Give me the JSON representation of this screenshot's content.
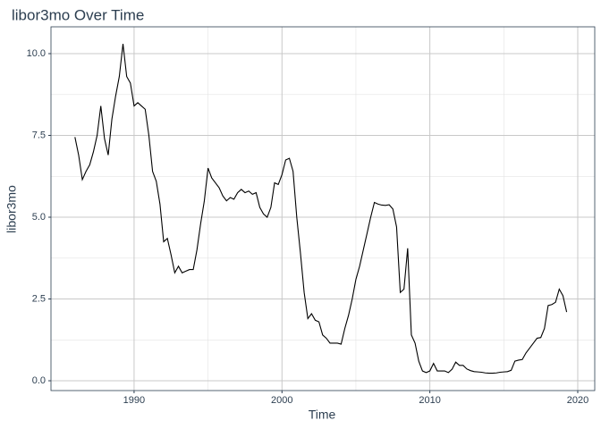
{
  "chart_data": {
    "type": "line",
    "title": "libor3mo Over Time",
    "x_label": "Time",
    "y_label": "libor3mo",
    "x": [
      1986,
      1986.25,
      1986.5,
      1986.75,
      1987,
      1987.25,
      1987.5,
      1987.75,
      1988,
      1988.25,
      1988.5,
      1988.75,
      1989,
      1989.25,
      1989.5,
      1989.75,
      1990,
      1990.25,
      1990.5,
      1990.75,
      1991,
      1991.25,
      1991.5,
      1991.75,
      1992,
      1992.25,
      1992.5,
      1992.75,
      1993,
      1993.25,
      1993.5,
      1993.75,
      1994,
      1994.25,
      1994.5,
      1994.75,
      1995,
      1995.25,
      1995.5,
      1995.75,
      1996,
      1996.25,
      1996.5,
      1996.75,
      1997,
      1997.25,
      1997.5,
      1997.75,
      1998,
      1998.25,
      1998.5,
      1998.75,
      1999,
      1999.25,
      1999.5,
      1999.75,
      2000,
      2000.25,
      2000.5,
      2000.75,
      2001,
      2001.25,
      2001.5,
      2001.75,
      2002,
      2002.25,
      2002.5,
      2002.75,
      2003,
      2003.25,
      2003.5,
      2003.75,
      2004,
      2004.25,
      2004.5,
      2004.75,
      2005,
      2005.25,
      2005.5,
      2005.75,
      2006,
      2006.25,
      2006.5,
      2006.75,
      2007,
      2007.25,
      2007.5,
      2007.75,
      2008,
      2008.25,
      2008.5,
      2008.75,
      2009,
      2009.25,
      2009.5,
      2009.75,
      2010,
      2010.25,
      2010.5,
      2010.75,
      2011,
      2011.25,
      2011.5,
      2011.75,
      2012,
      2012.25,
      2012.5,
      2012.75,
      2013,
      2013.25,
      2013.5,
      2013.75,
      2014,
      2014.25,
      2014.5,
      2014.75,
      2015,
      2015.25,
      2015.5,
      2015.75,
      2016,
      2016.25,
      2016.5,
      2016.75,
      2017,
      2017.25,
      2017.5,
      2017.75,
      2018,
      2018.25,
      2018.5,
      2018.75,
      2019,
      2019.25
    ],
    "series": [
      {
        "name": "libor3mo",
        "color": "#000000",
        "values": [
          7.45,
          6.9,
          6.15,
          6.4,
          6.6,
          7.0,
          7.5,
          8.4,
          7.4,
          6.9,
          8.0,
          8.7,
          9.3,
          10.3,
          9.3,
          9.1,
          8.4,
          8.5,
          8.4,
          8.3,
          7.5,
          6.4,
          6.1,
          5.4,
          4.25,
          4.35,
          3.85,
          3.3,
          3.5,
          3.3,
          3.35,
          3.4,
          3.4,
          4.0,
          4.8,
          5.5,
          6.5,
          6.2,
          6.05,
          5.9,
          5.65,
          5.5,
          5.6,
          5.55,
          5.75,
          5.85,
          5.75,
          5.8,
          5.7,
          5.75,
          5.3,
          5.1,
          5.0,
          5.3,
          6.05,
          6.0,
          6.3,
          6.75,
          6.8,
          6.4,
          5.0,
          3.9,
          2.7,
          1.9,
          2.05,
          1.85,
          1.8,
          1.4,
          1.3,
          1.15,
          1.15,
          1.15,
          1.12,
          1.6,
          2.0,
          2.5,
          3.1,
          3.5,
          4.0,
          4.5,
          5.0,
          5.45,
          5.4,
          5.37,
          5.36,
          5.38,
          5.25,
          4.7,
          2.7,
          2.8,
          4.05,
          1.4,
          1.15,
          0.6,
          0.3,
          0.25,
          0.3,
          0.53,
          0.3,
          0.3,
          0.3,
          0.25,
          0.35,
          0.57,
          0.47,
          0.47,
          0.36,
          0.31,
          0.28,
          0.27,
          0.26,
          0.24,
          0.23,
          0.23,
          0.24,
          0.26,
          0.27,
          0.28,
          0.32,
          0.6,
          0.63,
          0.65,
          0.85,
          1.0,
          1.15,
          1.3,
          1.32,
          1.6,
          2.3,
          2.33,
          2.4,
          2.8,
          2.6,
          2.1
        ]
      }
    ],
    "xlim": [
      1984.38,
      2021.15
    ],
    "xticks": [
      1990,
      2000,
      2010,
      2020
    ],
    "ylim": [
      -0.3,
      10.82
    ],
    "yticks": [
      {
        "value": 0,
        "label": "0.0"
      },
      2.5,
      {
        "value": 5,
        "label": "5.0"
      },
      7.5,
      {
        "value": 10,
        "label": "10.0"
      }
    ],
    "grid": true
  }
}
